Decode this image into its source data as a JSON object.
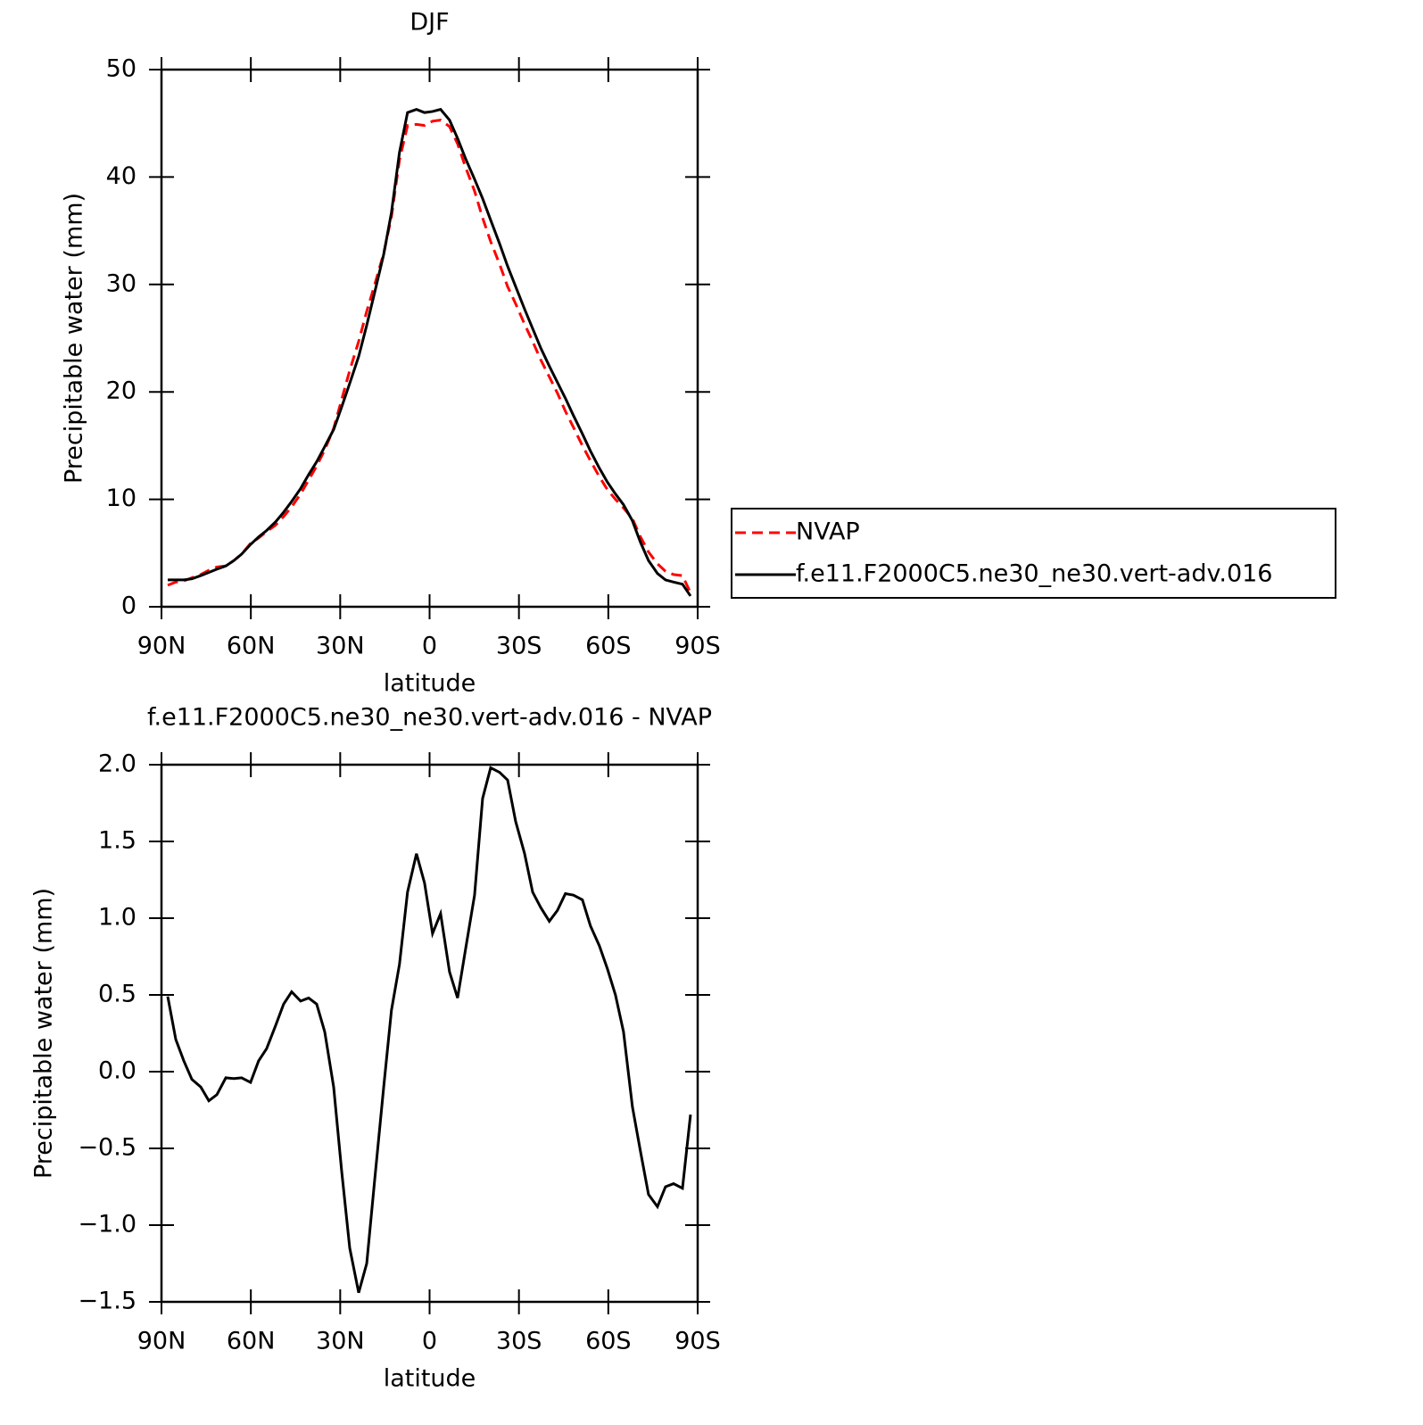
{
  "chart_data": [
    {
      "type": "line",
      "title": "DJF",
      "x_label": "latitude",
      "y_label": "Precipitable water (mm)",
      "x": [
        87.9,
        85.2,
        82.5,
        79.8,
        76.8,
        74.1,
        71.4,
        68.4,
        65.7,
        63.1,
        60.1,
        57.4,
        54.7,
        51.7,
        49.0,
        46.3,
        43.3,
        40.6,
        37.9,
        35.2,
        32.2,
        29.5,
        26.8,
        23.8,
        21.1,
        18.4,
        15.4,
        12.8,
        10.1,
        7.4,
        4.4,
        1.7,
        -1.0,
        -3.7,
        -6.7,
        -9.4,
        -12.1,
        -15.1,
        -17.8,
        -20.5,
        -23.5,
        -26.2,
        -28.9,
        -31.9,
        -34.6,
        -37.3,
        -40.2,
        -42.9,
        -45.6,
        -48.3,
        -51.3,
        -54.0,
        -57.0,
        -59.7,
        -62.4,
        -65.1,
        -68.1,
        -70.8,
        -73.5,
        -76.5,
        -79.2,
        -81.9,
        -84.9,
        -87.6
      ],
      "series": [
        {
          "name": "NVAP",
          "color": "#ff0000",
          "line_style": "dashed",
          "values": [
            2.0,
            2.3,
            2.4,
            2.7,
            3.0,
            3.4,
            3.7,
            3.8,
            4.3,
            4.9,
            5.9,
            6.4,
            7.0,
            7.6,
            8.4,
            9.3,
            10.5,
            11.8,
            13.1,
            14.6,
            16.6,
            19.3,
            22.0,
            24.7,
            27.5,
            30.0,
            32.9,
            36.3,
            41.6,
            44.8,
            44.9,
            44.8,
            45.2,
            45.3,
            44.7,
            43.1,
            40.9,
            38.7,
            36.2,
            34.0,
            31.9,
            29.8,
            28.2,
            26.3,
            24.7,
            23.0,
            21.4,
            19.9,
            18.2,
            16.7,
            15.0,
            13.6,
            12.1,
            10.9,
            10.0,
            9.2,
            8.2,
            6.5,
            5.1,
            4.0,
            3.3,
            3.0,
            2.9,
            1.3
          ]
        },
        {
          "name": "f.e11.F2000C5.ne30_ne30.vert-adv.016",
          "color": "#000000",
          "line_style": "solid",
          "values": [
            2.5,
            2.5,
            2.5,
            2.6,
            2.9,
            3.2,
            3.5,
            3.8,
            4.3,
            4.9,
            5.8,
            6.5,
            7.1,
            7.9,
            8.8,
            9.8,
            11.0,
            12.3,
            13.5,
            14.9,
            16.5,
            18.6,
            20.8,
            23.3,
            26.2,
            29.3,
            32.8,
            36.7,
            42.3,
            46.0,
            46.3,
            46.0,
            46.1,
            46.3,
            45.3,
            43.6,
            41.7,
            39.8,
            38.0,
            36.0,
            33.8,
            31.7,
            29.8,
            27.7,
            25.9,
            24.1,
            22.4,
            20.9,
            19.4,
            17.8,
            16.1,
            14.5,
            12.9,
            11.6,
            10.5,
            9.5,
            8.0,
            6.0,
            4.3,
            3.1,
            2.5,
            2.3,
            2.1,
            1.0
          ]
        }
      ],
      "xlim": [
        90,
        -90
      ],
      "xticks": [
        {
          "value": 90,
          "label": "90N"
        },
        {
          "value": 60,
          "label": "60N"
        },
        {
          "value": 30,
          "label": "30N"
        },
        0,
        {
          "value": -30,
          "label": "30S"
        },
        {
          "value": -60,
          "label": "60S"
        },
        {
          "value": -90,
          "label": "90S"
        }
      ],
      "ylim": [
        0,
        50
      ],
      "yticks": [
        0,
        10,
        20,
        30,
        40,
        50
      ],
      "legend": "right"
    },
    {
      "type": "line",
      "title": "f.e11.F2000C5.ne30_ne30.vert-adv.016 - NVAP",
      "x_label": "latitude",
      "y_label": "Precipitable water (mm)",
      "x": [
        87.9,
        85.2,
        82.5,
        79.8,
        76.8,
        74.1,
        71.4,
        68.4,
        65.7,
        63.1,
        60.1,
        57.4,
        54.7,
        51.7,
        49.0,
        46.3,
        43.3,
        40.6,
        37.9,
        35.2,
        32.2,
        29.5,
        26.8,
        23.8,
        21.1,
        18.4,
        15.4,
        12.8,
        10.1,
        7.4,
        4.4,
        1.7,
        -1.0,
        -3.7,
        -6.7,
        -9.4,
        -12.1,
        -15.1,
        -17.8,
        -20.5,
        -23.5,
        -26.2,
        -28.9,
        -31.9,
        -34.6,
        -37.3,
        -40.2,
        -42.9,
        -45.6,
        -48.3,
        -51.3,
        -54.0,
        -57.0,
        -59.7,
        -62.4,
        -65.1,
        -68.1,
        -70.8,
        -73.5,
        -76.5,
        -79.2,
        -81.9,
        -84.9,
        -87.6
      ],
      "series": [
        {
          "color": "#000000",
          "line_style": "solid",
          "values": [
            0.49,
            0.21,
            0.07,
            -0.05,
            -0.1,
            -0.19,
            -0.15,
            -0.04,
            -0.045,
            -0.04,
            -0.07,
            0.07,
            0.15,
            0.3,
            0.44,
            0.52,
            0.46,
            0.48,
            0.44,
            0.26,
            -0.1,
            -0.65,
            -1.15,
            -1.44,
            -1.25,
            -0.7,
            -0.1,
            0.4,
            0.7,
            1.17,
            1.42,
            1.23,
            0.9,
            1.03,
            0.65,
            0.48,
            0.8,
            1.15,
            1.78,
            1.98,
            1.95,
            1.9,
            1.63,
            1.42,
            1.17,
            1.07,
            0.98,
            1.05,
            1.16,
            1.15,
            1.12,
            0.95,
            0.82,
            0.67,
            0.5,
            0.26,
            -0.23,
            -0.52,
            -0.8,
            -0.88,
            -0.75,
            -0.73,
            -0.76,
            -0.28
          ]
        }
      ],
      "xlim": [
        90,
        -90
      ],
      "xticks": [
        {
          "value": 90,
          "label": "90N"
        },
        {
          "value": 60,
          "label": "60N"
        },
        {
          "value": 30,
          "label": "30N"
        },
        0,
        {
          "value": -30,
          "label": "30S"
        },
        {
          "value": -60,
          "label": "60S"
        },
        {
          "value": -90,
          "label": "90S"
        }
      ],
      "ylim": [
        -1.5,
        2.0
      ],
      "yticks": [
        {
          "value": -1.5,
          "label": "−1.5"
        },
        {
          "value": -1.0,
          "label": "−1.0"
        },
        {
          "value": -0.5,
          "label": "−0.5"
        },
        {
          "value": 0,
          "label": "0.0"
        },
        0.5,
        {
          "value": 1.0,
          "label": "1.0"
        },
        1.5,
        {
          "value": 2.0,
          "label": "2.0"
        }
      ]
    }
  ]
}
